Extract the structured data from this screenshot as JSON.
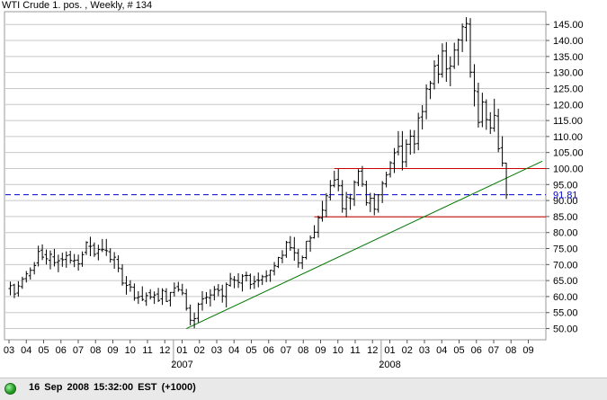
{
  "window": {
    "title": "WTI Crude 1. pos. , Weekly, # 134"
  },
  "status_bar": {
    "timestamp": "16 Sep 2008 15:32:00  EST (+1000)",
    "indicator_color": "#2aa12a"
  },
  "chart_data": {
    "type": "ohlc",
    "title": "WTI Crude 1. pos. , Weekly, # 134",
    "ylim": [
      46.5,
      149
    ],
    "y_ticks": [
      "50.00",
      "55.00",
      "60.00",
      "65.00",
      "70.00",
      "75.00",
      "80.00",
      "85.00",
      "90.00",
      "95.00",
      "100.00",
      "105.00",
      "110.00",
      "115.00",
      "120.00",
      "125.00",
      "130.00",
      "135.00",
      "140.00",
      "145.00"
    ],
    "x_tick_labels": [
      "03",
      "04",
      "05",
      "06",
      "07",
      "08",
      "09",
      "10",
      "11",
      "12",
      "01",
      "02",
      "03",
      "04",
      "05",
      "06",
      "07",
      "08",
      "09",
      "10",
      "11",
      "12",
      "01",
      "02",
      "03",
      "04",
      "05",
      "06",
      "07",
      "08",
      "09"
    ],
    "year_labels": [
      "2007",
      "2008"
    ],
    "current_price_label": "91.81",
    "colors": {
      "bars": "#000000",
      "support_lines": "#cc0000",
      "trend_line": "#007700",
      "price_line": "#0000cc",
      "grid": "#c8c8c8"
    },
    "horizontal_lines": [
      {
        "value": 100.0,
        "color": "#cc0000",
        "from_week": 81
      },
      {
        "value": 84.9,
        "color": "#cc0000",
        "from_week": 76
      }
    ],
    "trend_line": {
      "start": {
        "week": 44,
        "value": 50.0
      },
      "end": {
        "week": 133,
        "value": 102.3
      },
      "color": "#007700"
    },
    "dashed_line": {
      "value": 91.81,
      "color": "#0000cc"
    },
    "series": [
      {
        "values": [
          [
            62.5,
            64.7,
            60.4,
            63.4
          ],
          [
            63.6,
            64.0,
            59.5,
            60.8
          ],
          [
            61.1,
            64.8,
            60.0,
            63.3
          ],
          [
            63.1,
            66.2,
            62.4,
            65.5
          ],
          [
            65.6,
            68.0,
            64.4,
            67.1
          ],
          [
            66.5,
            69.1,
            65.3,
            68.2
          ],
          [
            68.2,
            70.8,
            66.9,
            69.7
          ],
          [
            70.5,
            75.9,
            69.4,
            74.1
          ],
          [
            74.5,
            76.3,
            71.4,
            72.3
          ],
          [
            73.1,
            74.7,
            70.0,
            71.8
          ],
          [
            71.3,
            74.4,
            68.5,
            73.2
          ],
          [
            72.4,
            74.9,
            69.4,
            70.6
          ],
          [
            70.7,
            73.1,
            67.6,
            71.2
          ],
          [
            71.8,
            73.7,
            69.3,
            71.5
          ],
          [
            71.6,
            74.1,
            69.0,
            72.8
          ],
          [
            73.0,
            74.3,
            70.3,
            71.3
          ],
          [
            71.1,
            73.3,
            69.2,
            71.3
          ],
          [
            71.4,
            73.1,
            68.1,
            70.2
          ],
          [
            70.3,
            74.1,
            69.3,
            73.1
          ],
          [
            73.8,
            77.3,
            73.0,
            76.9
          ],
          [
            75.7,
            78.7,
            72.6,
            75.7
          ],
          [
            76.0,
            76.9,
            72.4,
            73.2
          ],
          [
            73.5,
            76.2,
            71.3,
            74.7
          ],
          [
            74.6,
            78.0,
            73.9,
            74.7
          ],
          [
            74.5,
            78.0,
            72.7,
            74.3
          ],
          [
            74.0,
            75.1,
            70.6,
            71.6
          ],
          [
            71.5,
            73.9,
            68.7,
            72.3
          ],
          [
            71.6,
            72.9,
            67.6,
            68.9
          ],
          [
            68.7,
            70.1,
            63.4,
            64.2
          ],
          [
            64.2,
            66.4,
            60.6,
            63.5
          ],
          [
            63.7,
            65.1,
            61.5,
            63.0
          ],
          [
            62.9,
            64.1,
            58.7,
            59.5
          ],
          [
            59.6,
            61.7,
            57.7,
            59.9
          ],
          [
            60.1,
            63.2,
            58.6,
            59.1
          ],
          [
            58.6,
            61.3,
            57.1,
            60.3
          ],
          [
            61.2,
            62.3,
            59.1,
            59.9
          ],
          [
            59.8,
            61.6,
            57.7,
            60.5
          ],
          [
            60.8,
            62.7,
            58.3,
            58.8
          ],
          [
            59.3,
            62.6,
            57.4,
            61.9
          ],
          [
            61.6,
            62.6,
            58.3,
            58.5
          ],
          [
            58.8,
            61.4,
            56.9,
            61.3
          ],
          [
            61.3,
            64.4,
            60.0,
            62.7
          ],
          [
            63.1,
            64.6,
            61.5,
            62.2
          ],
          [
            62.0,
            64.0,
            60.4,
            61.1
          ],
          [
            60.9,
            62.4,
            55.6,
            56.3
          ],
          [
            56.4,
            57.5,
            51.0,
            52.6
          ],
          [
            52.5,
            55.0,
            50.1,
            53.1
          ],
          [
            53.2,
            58.1,
            51.9,
            57.6
          ],
          [
            57.7,
            61.7,
            55.6,
            59.3
          ],
          [
            59.5,
            61.4,
            57.7,
            59.8
          ],
          [
            59.6,
            62.3,
            56.9,
            60.5
          ],
          [
            60.5,
            63.3,
            58.8,
            62.2
          ],
          [
            62.3,
            63.9,
            60.1,
            61.9
          ],
          [
            62.2,
            63.7,
            58.1,
            60.2
          ],
          [
            60.0,
            64.4,
            56.6,
            63.8
          ],
          [
            63.5,
            67.4,
            63.1,
            65.6
          ],
          [
            65.3,
            66.4,
            62.6,
            65.1
          ],
          [
            65.0,
            67.3,
            62.7,
            64.4
          ],
          [
            64.2,
            67.0,
            61.6,
            66.4
          ],
          [
            66.6,
            67.8,
            64.7,
            66.6
          ],
          [
            66.6,
            67.2,
            62.3,
            63.8
          ],
          [
            64.0,
            66.5,
            62.4,
            64.7
          ],
          [
            65.2,
            67.5,
            62.9,
            65.0
          ],
          [
            65.2,
            66.8,
            63.6,
            66.2
          ],
          [
            66.2,
            68.2,
            64.5,
            66.5
          ],
          [
            66.7,
            68.4,
            64.6,
            68.2
          ],
          [
            68.0,
            70.8,
            66.6,
            69.6
          ],
          [
            69.4,
            72.4,
            68.9,
            72.2
          ],
          [
            72.0,
            74.5,
            70.4,
            72.9
          ],
          [
            72.9,
            77.4,
            72.1,
            76.9
          ],
          [
            76.9,
            78.9,
            74.3,
            75.3
          ],
          [
            75.2,
            78.6,
            71.2,
            73.7
          ],
          [
            73.6,
            74.9,
            69.0,
            70.5
          ],
          [
            70.5,
            72.8,
            68.6,
            72.2
          ],
          [
            72.2,
            77.3,
            71.6,
            77.3
          ],
          [
            77.3,
            79.1,
            74.0,
            78.3
          ],
          [
            78.4,
            82.3,
            78.1,
            80.1
          ],
          [
            80.1,
            85.3,
            78.4,
            84.6
          ],
          [
            84.5,
            89.9,
            83.4,
            87.0
          ],
          [
            86.9,
            92.3,
            84.8,
            91.5
          ],
          [
            91.1,
            96.4,
            90.0,
            94.6
          ],
          [
            94.7,
            99.3,
            94.1,
            96.4
          ],
          [
            96.6,
            99.9,
            92.9,
            94.6
          ],
          [
            94.6,
            96.4,
            86.2,
            87.5
          ],
          [
            87.4,
            92.7,
            84.8,
            91.1
          ],
          [
            90.8,
            92.1,
            87.1,
            90.6
          ],
          [
            90.5,
            96.3,
            88.3,
            95.7
          ],
          [
            95.6,
            99.8,
            94.5,
            99.1
          ],
          [
            99.2,
            100.8,
            94.3,
            95.1
          ],
          [
            94.9,
            96.2,
            88.4,
            89.3
          ],
          [
            89.2,
            92.4,
            86.4,
            90.7
          ],
          [
            90.7,
            92.3,
            85.4,
            87.3
          ],
          [
            87.2,
            92.0,
            86.2,
            91.8
          ],
          [
            91.8,
            96.1,
            89.2,
            95.4
          ],
          [
            95.2,
            99.0,
            94.1,
            98.0
          ],
          [
            98.2,
            102.3,
            97.2,
            101.8
          ],
          [
            101.6,
            106.4,
            98.6,
            104.9
          ],
          [
            105.2,
            111.7,
            104.1,
            106.9
          ],
          [
            107.0,
            111.7,
            99.4,
            102.1
          ],
          [
            102.1,
            109.1,
            100.4,
            107.6
          ],
          [
            107.6,
            112.1,
            104.3,
            110.1
          ],
          [
            110.1,
            112.0,
            104.7,
            107.7
          ],
          [
            107.8,
            117.4,
            105.7,
            115.8
          ],
          [
            116.1,
            119.8,
            112.2,
            117.8
          ],
          [
            117.8,
            126.3,
            115.4,
            124.9
          ],
          [
            124.7,
            127.4,
            121.7,
            126.7
          ],
          [
            126.5,
            133.8,
            124.7,
            132.0
          ],
          [
            132.3,
            135.6,
            126.6,
            129.5
          ],
          [
            129.5,
            139.1,
            128.4,
            136.7
          ],
          [
            136.7,
            139.5,
            127.1,
            131.1
          ],
          [
            131.3,
            135.0,
            125.7,
            132.0
          ],
          [
            131.9,
            139.3,
            131.1,
            137.0
          ],
          [
            137.0,
            140.6,
            132.2,
            140.2
          ],
          [
            140.1,
            145.3,
            136.4,
            144.3
          ],
          [
            144.1,
            147.3,
            139.7,
            145.3
          ],
          [
            145.1,
            147.0,
            128.4,
            130.1
          ],
          [
            130.1,
            132.6,
            119.4,
            124.3
          ],
          [
            124.0,
            126.8,
            112.8,
            114.4
          ],
          [
            114.5,
            123.7,
            112.9,
            120.8
          ],
          [
            120.7,
            121.6,
            112.1,
            115.3
          ],
          [
            115.2,
            117.6,
            110.8,
            112.7
          ],
          [
            112.6,
            121.8,
            111.5,
            116.6
          ],
          [
            116.4,
            118.7,
            105.1,
            106.2
          ],
          [
            106.5,
            110.1,
            100.6,
            101.7
          ],
          [
            101.7,
            101.8,
            90.5,
            91.8
          ]
        ]
      }
    ]
  }
}
